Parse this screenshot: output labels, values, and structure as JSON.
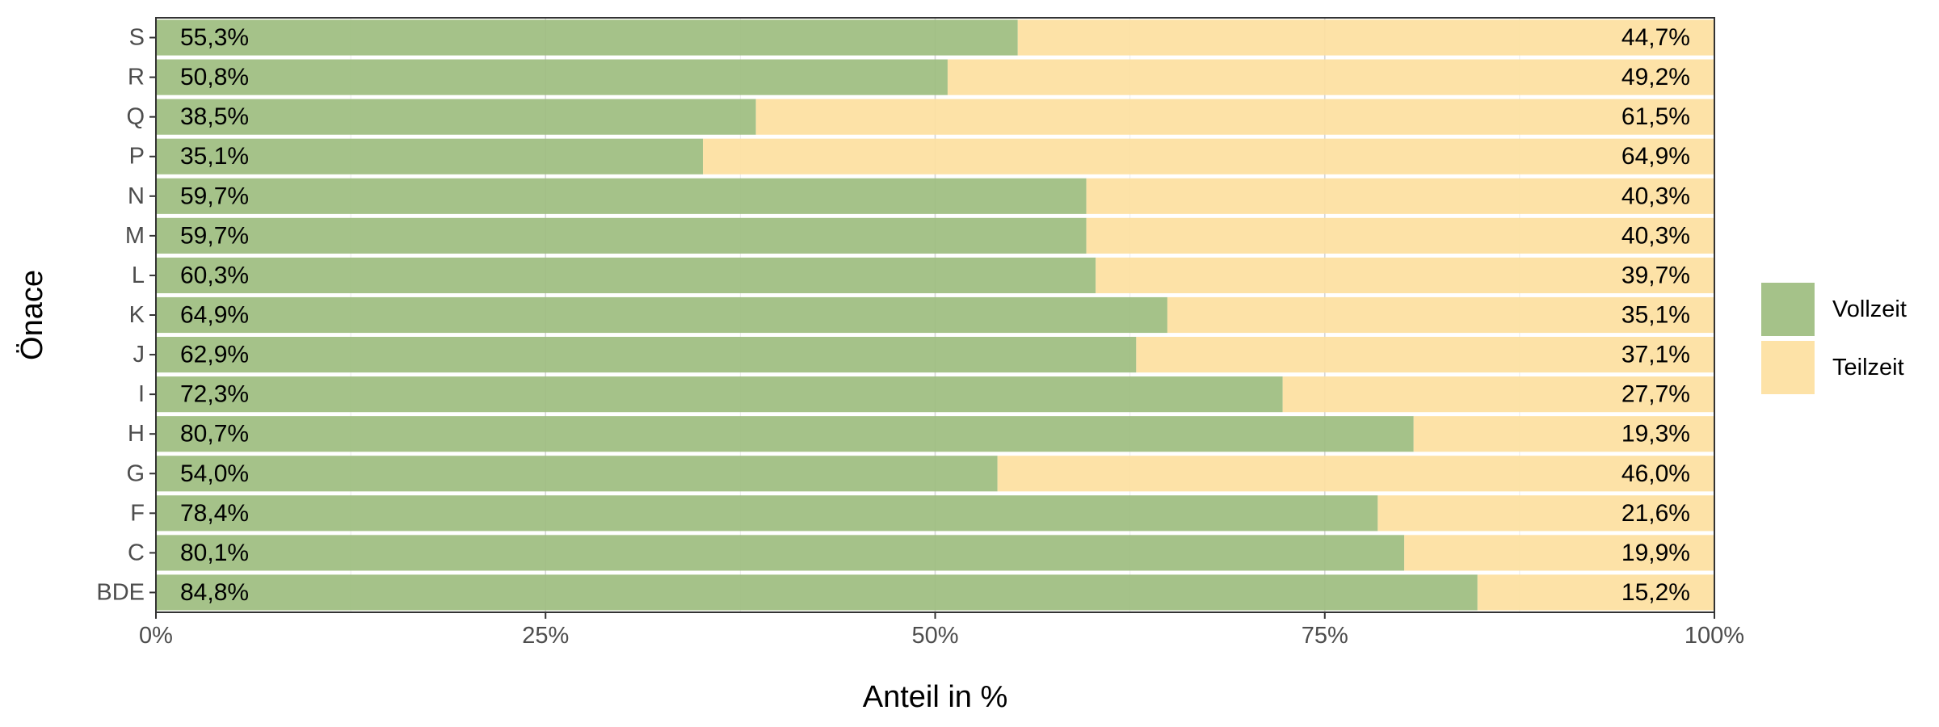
{
  "chart_data": {
    "type": "bar",
    "orientation": "horizontal",
    "stacked": true,
    "xlabel": "Anteil in %",
    "ylabel": "Önace",
    "xlim": [
      0,
      100
    ],
    "x_ticks": [
      "0%",
      "25%",
      "50%",
      "75%",
      "100%"
    ],
    "grid": true,
    "legend_position": "right",
    "categories": [
      "BDE",
      "C",
      "F",
      "G",
      "H",
      "I",
      "J",
      "K",
      "L",
      "M",
      "N",
      "P",
      "Q",
      "R",
      "S"
    ],
    "series": [
      {
        "name": "Vollzeit",
        "color": "#9dbd7f",
        "values": [
          84.8,
          80.1,
          78.4,
          54.0,
          80.7,
          72.3,
          62.9,
          64.9,
          60.3,
          59.7,
          59.7,
          35.1,
          38.5,
          50.8,
          55.3
        ],
        "labels": [
          "84,8%",
          "80,1%",
          "78,4%",
          "54,0%",
          "80,7%",
          "72,3%",
          "62,9%",
          "64,9%",
          "60,3%",
          "59,7%",
          "59,7%",
          "35,1%",
          "38,5%",
          "50,8%",
          "55,3%"
        ]
      },
      {
        "name": "Teilzeit",
        "color": "#fde0a0",
        "values": [
          15.2,
          19.9,
          21.6,
          46.0,
          19.3,
          27.7,
          37.1,
          35.1,
          39.7,
          40.3,
          40.3,
          64.9,
          61.5,
          49.2,
          44.7
        ],
        "labels": [
          "15,2%",
          "19,9%",
          "21,6%",
          "46,0%",
          "19,3%",
          "27,7%",
          "37,1%",
          "35,1%",
          "39,7%",
          "40,3%",
          "40,3%",
          "64,9%",
          "61,5%",
          "49,2%",
          "44,7%"
        ]
      }
    ]
  }
}
